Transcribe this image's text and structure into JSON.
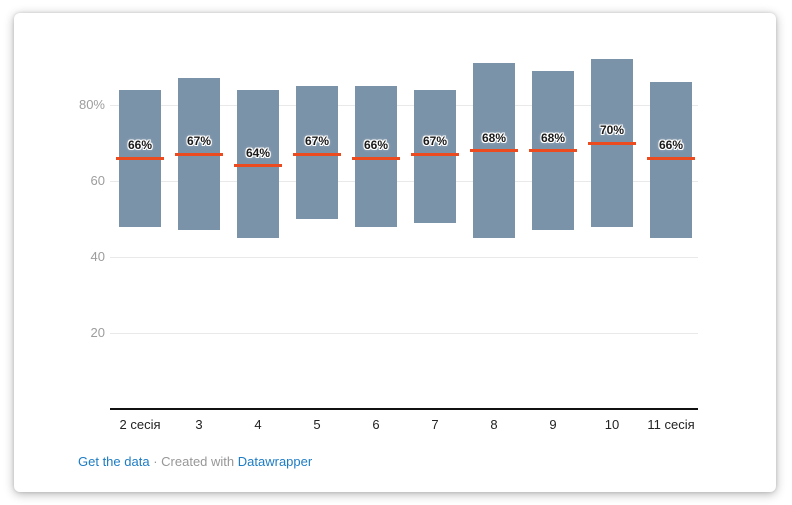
{
  "chart_data": {
    "type": "bar",
    "variant": "column-range-with-value-markers",
    "title": "",
    "categories": [
      "2 сесія",
      "3",
      "4",
      "5",
      "6",
      "7",
      "8",
      "9",
      "10",
      "11 сесія"
    ],
    "series": [
      {
        "name": "range_low",
        "values": [
          48,
          47,
          45,
          50,
          48,
          49,
          45,
          47,
          48,
          45
        ]
      },
      {
        "name": "range_high",
        "values": [
          84,
          87,
          84,
          85,
          85,
          84,
          91,
          89,
          92,
          86
        ]
      },
      {
        "name": "marker",
        "values": [
          66,
          67,
          64,
          67,
          66,
          67,
          68,
          68,
          70,
          66
        ]
      }
    ],
    "marker_labels": [
      "66%",
      "67%",
      "64%",
      "67%",
      "66%",
      "67%",
      "68%",
      "68%",
      "70%",
      "66%"
    ],
    "y_ticks": [
      {
        "value": 20,
        "label": "20"
      },
      {
        "value": 40,
        "label": "40"
      },
      {
        "value": 60,
        "label": "60"
      },
      {
        "value": 80,
        "label": "80%"
      }
    ],
    "ylim": [
      0,
      100
    ],
    "grid": "horizontal",
    "legend": "none",
    "colors": {
      "bar": "#7b93a9",
      "marker_line": "#ec4b20",
      "value_label": "#1a1a1a",
      "grid_line": "#e9e9e9",
      "y_label": "#9d9d9d",
      "x_label": "#222222",
      "baseline": "#111111"
    }
  },
  "footer": {
    "get_data_label": "Get the data",
    "separator": "·",
    "created_with": "Created with",
    "brand": "Datawrapper",
    "link_color": "#1d7cc4",
    "muted_color": "#979797"
  }
}
